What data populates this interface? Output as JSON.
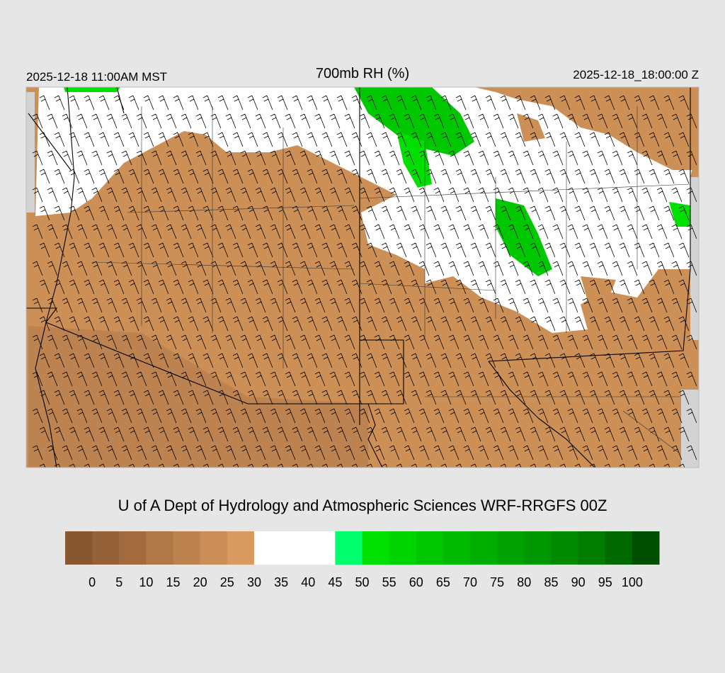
{
  "header": {
    "title": "700mb RH (%)",
    "left": "2025-12-18 11:00AM MST",
    "right": "2025-12-18_18:00:00 Z"
  },
  "footer": "U of A Dept of Hydrology and Atmospheric Sciences WRF-RRGFS 00Z",
  "colorbar": {
    "levels": [
      0,
      5,
      10,
      15,
      20,
      25,
      30,
      35,
      40,
      45,
      50,
      55,
      60,
      65,
      70,
      75,
      80,
      85,
      90,
      95,
      100
    ],
    "colors": [
      "#87582f",
      "#946139",
      "#a26b3f",
      "#b07847",
      "#bd834f",
      "#ca8e56",
      "#d89a5e",
      "#ffffff",
      "#ffffff",
      "#ffffff",
      "#00ff6e",
      "#00e000",
      "#00d400",
      "#00c600",
      "#00ba00",
      "#00ae00",
      "#00a200",
      "#009600",
      "#008a00",
      "#007c00",
      "#006a00",
      "#004f00"
    ]
  }
}
